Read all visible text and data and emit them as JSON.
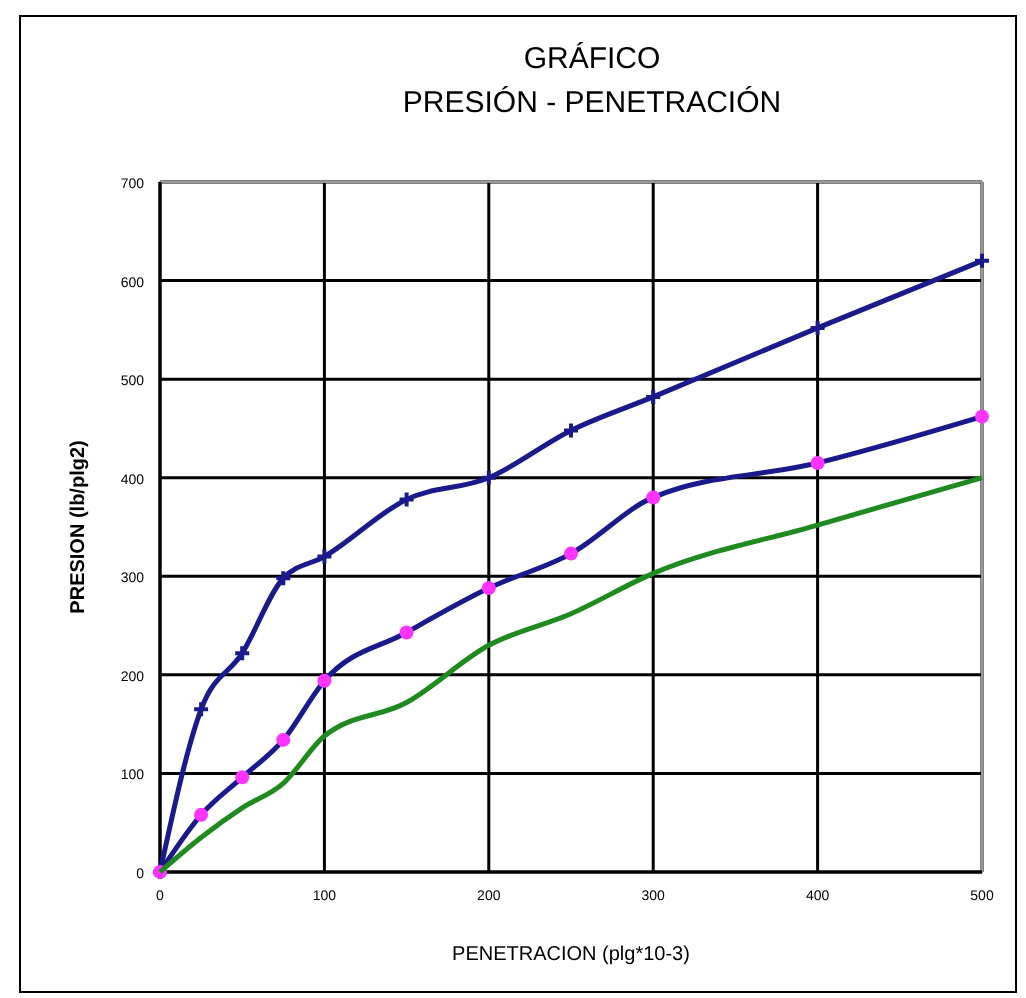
{
  "chart_data": {
    "type": "line",
    "title": "GRÁFICO",
    "subtitle": "PRESIÓN  - PENETRACIÓN",
    "xlabel": "PENETRACION (plg*10-3)",
    "ylabel": "PRESION (lb/plg2)",
    "x": [
      0,
      25,
      50,
      75,
      100,
      150,
      200,
      250,
      300,
      400,
      500
    ],
    "series": [
      {
        "color": "#1a1a8c",
        "marker": "cross",
        "values": [
          0,
          165,
          222,
          298,
          320,
          378,
          400,
          448,
          482,
          552,
          620
        ]
      },
      {
        "color": "#1a1a8c",
        "marker": "circle",
        "colors": [
          "#ff33ff",
          "#ff33ff",
          "#ff33ff",
          "#ff33ff",
          "#ff33ff",
          "#ff33ff",
          "#ff33ff",
          "#ff33ff",
          "#ff33ff",
          "#ff33ff",
          "#ff33ff"
        ],
        "values": [
          0,
          58,
          96,
          134,
          194,
          243,
          288,
          323,
          380,
          415,
          462
        ]
      },
      {
        "color": "#1f8a1f",
        "marker": "none",
        "values": [
          0,
          35,
          65,
          90,
          138,
          172,
          230,
          262,
          303,
          352,
          400
        ]
      }
    ],
    "xlim": [
      0,
      500
    ],
    "xticks": [
      0,
      100,
      200,
      300,
      400,
      500
    ],
    "ylim": [
      0,
      700
    ],
    "yticks": [
      0,
      100,
      200,
      300,
      400,
      500,
      600,
      700
    ],
    "grid": true
  }
}
